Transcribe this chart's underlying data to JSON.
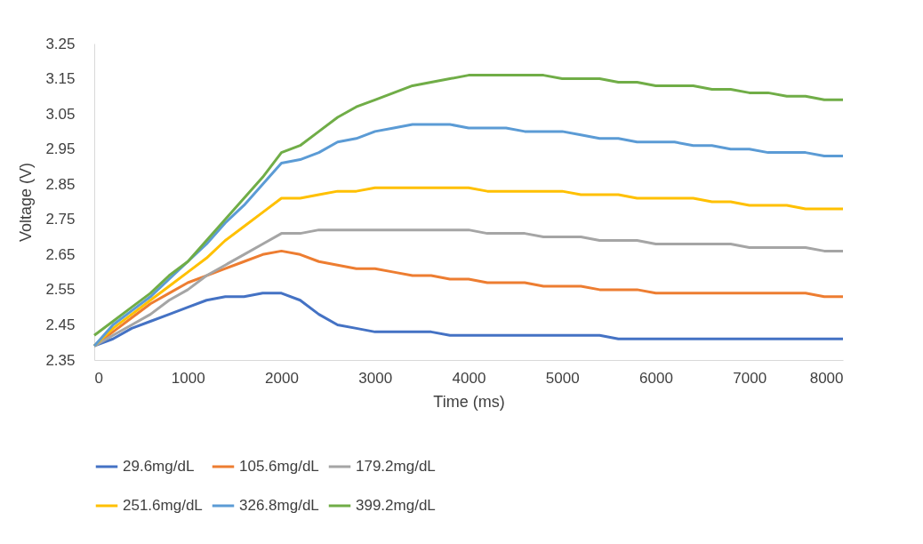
{
  "chart_data": {
    "type": "line",
    "xlabel": "Time (ms)",
    "ylabel": "Voltage (V)",
    "x": [
      0,
      200,
      400,
      600,
      800,
      1000,
      1200,
      1400,
      1600,
      1800,
      2000,
      2200,
      2400,
      2600,
      2800,
      3000,
      3200,
      3400,
      3600,
      3800,
      4000,
      4200,
      4400,
      4600,
      4800,
      5000,
      5200,
      5400,
      5600,
      5800,
      6000,
      6200,
      6400,
      6600,
      6800,
      7000,
      7200,
      7400,
      7600,
      7800,
      8000
    ],
    "xlim": [
      0,
      8000
    ],
    "xticks": [
      0,
      1000,
      2000,
      3000,
      4000,
      5000,
      6000,
      7000,
      8000
    ],
    "ylim": [
      2.35,
      3.25
    ],
    "yticks": [
      2.35,
      2.45,
      2.55,
      2.65,
      2.75,
      2.85,
      2.95,
      3.05,
      3.15,
      3.25
    ],
    "grid": false,
    "legend": "bottom",
    "marker": "none",
    "line_style": "solid",
    "series": [
      {
        "name": "29.6mg/dL",
        "color": "#4472c4",
        "values": [
          2.39,
          2.41,
          2.44,
          2.46,
          2.48,
          2.5,
          2.52,
          2.53,
          2.53,
          2.54,
          2.54,
          2.52,
          2.48,
          2.45,
          2.44,
          2.43,
          2.43,
          2.43,
          2.43,
          2.42,
          2.42,
          2.42,
          2.42,
          2.42,
          2.42,
          2.42,
          2.42,
          2.42,
          2.41,
          2.41,
          2.41,
          2.41,
          2.41,
          2.41,
          2.41,
          2.41,
          2.41,
          2.41,
          2.41,
          2.41,
          2.41
        ]
      },
      {
        "name": "105.6mg/dL",
        "color": "#ed7d31",
        "values": [
          2.39,
          2.43,
          2.47,
          2.51,
          2.54,
          2.57,
          2.59,
          2.61,
          2.63,
          2.65,
          2.66,
          2.65,
          2.63,
          2.62,
          2.61,
          2.61,
          2.6,
          2.59,
          2.59,
          2.58,
          2.58,
          2.57,
          2.57,
          2.57,
          2.56,
          2.56,
          2.56,
          2.55,
          2.55,
          2.55,
          2.54,
          2.54,
          2.54,
          2.54,
          2.54,
          2.54,
          2.54,
          2.54,
          2.54,
          2.53,
          2.53
        ]
      },
      {
        "name": "179.2mg/dL",
        "color": "#a5a5a5",
        "values": [
          2.39,
          2.42,
          2.45,
          2.48,
          2.52,
          2.55,
          2.59,
          2.62,
          2.65,
          2.68,
          2.71,
          2.71,
          2.72,
          2.72,
          2.72,
          2.72,
          2.72,
          2.72,
          2.72,
          2.72,
          2.72,
          2.71,
          2.71,
          2.71,
          2.7,
          2.7,
          2.7,
          2.69,
          2.69,
          2.69,
          2.68,
          2.68,
          2.68,
          2.68,
          2.68,
          2.67,
          2.67,
          2.67,
          2.67,
          2.66,
          2.66
        ]
      },
      {
        "name": "251.6mg/dL",
        "color": "#ffc000",
        "values": [
          2.39,
          2.44,
          2.48,
          2.52,
          2.56,
          2.6,
          2.64,
          2.69,
          2.73,
          2.77,
          2.81,
          2.81,
          2.82,
          2.83,
          2.83,
          2.84,
          2.84,
          2.84,
          2.84,
          2.84,
          2.84,
          2.83,
          2.83,
          2.83,
          2.83,
          2.83,
          2.82,
          2.82,
          2.82,
          2.81,
          2.81,
          2.81,
          2.81,
          2.8,
          2.8,
          2.79,
          2.79,
          2.79,
          2.78,
          2.78,
          2.78
        ]
      },
      {
        "name": "326.8mg/dL",
        "color": "#5b9bd5",
        "values": [
          2.39,
          2.45,
          2.49,
          2.53,
          2.58,
          2.63,
          2.68,
          2.74,
          2.79,
          2.85,
          2.91,
          2.92,
          2.94,
          2.97,
          2.98,
          3.0,
          3.01,
          3.02,
          3.02,
          3.02,
          3.01,
          3.01,
          3.01,
          3.0,
          3.0,
          3.0,
          2.99,
          2.98,
          2.98,
          2.97,
          2.97,
          2.97,
          2.96,
          2.96,
          2.95,
          2.95,
          2.94,
          2.94,
          2.94,
          2.93,
          2.93
        ]
      },
      {
        "name": "399.2mg/dL",
        "color": "#70ad47",
        "values": [
          2.42,
          2.46,
          2.5,
          2.54,
          2.59,
          2.63,
          2.69,
          2.75,
          2.81,
          2.87,
          2.94,
          2.96,
          3.0,
          3.04,
          3.07,
          3.09,
          3.11,
          3.13,
          3.14,
          3.15,
          3.16,
          3.16,
          3.16,
          3.16,
          3.16,
          3.15,
          3.15,
          3.15,
          3.14,
          3.14,
          3.13,
          3.13,
          3.13,
          3.12,
          3.12,
          3.11,
          3.11,
          3.1,
          3.1,
          3.09,
          3.09
        ]
      }
    ]
  }
}
